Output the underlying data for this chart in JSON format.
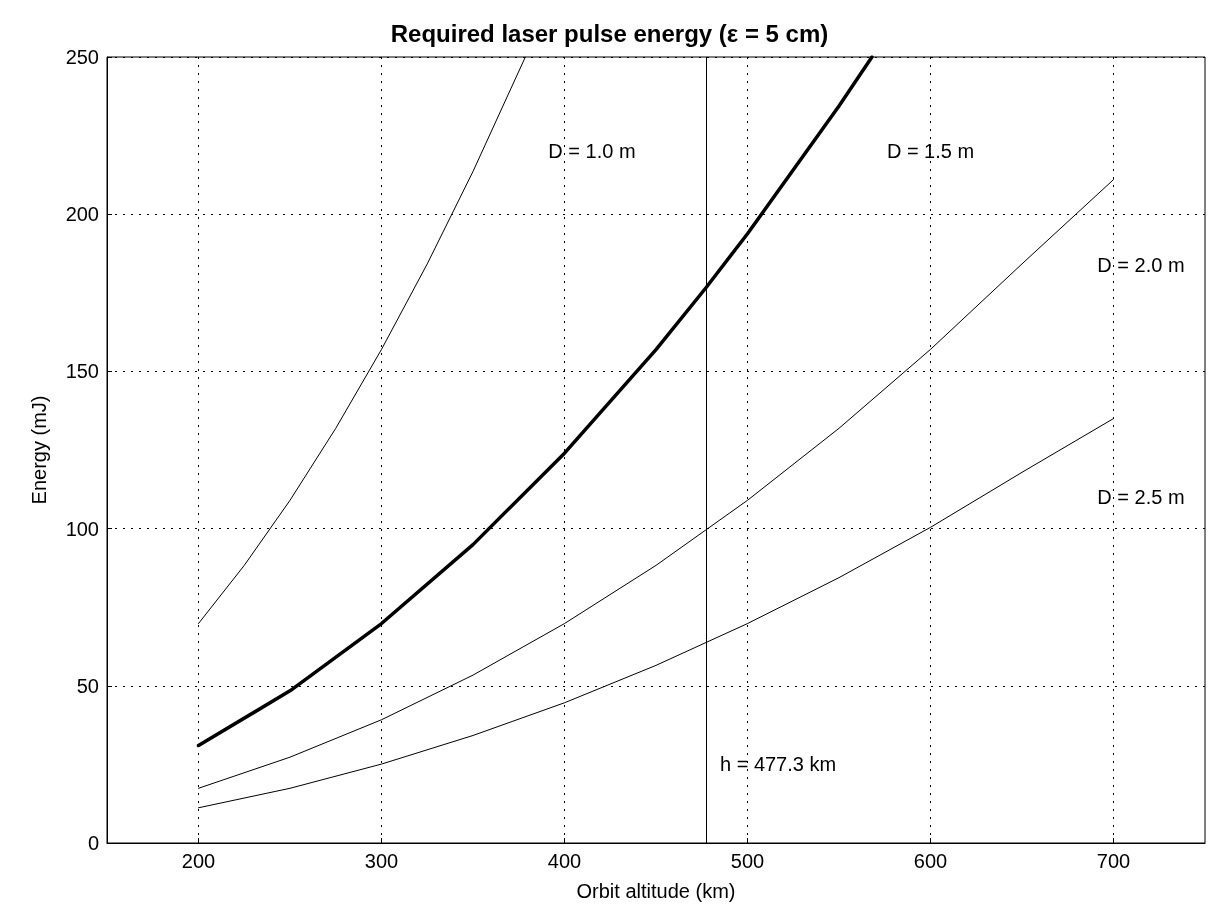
{
  "chart_data": {
    "type": "line",
    "title": "Required laser pulse energy (ε = 5 cm)",
    "xlabel": "Orbit altitude (km)",
    "ylabel": "Energy (mJ)",
    "xlim": [
      150,
      750
    ],
    "xticks": [
      200,
      300,
      400,
      500,
      600,
      700
    ],
    "ylim": [
      0,
      250
    ],
    "yticks": [
      0,
      50,
      100,
      150,
      200,
      250
    ],
    "grid": true,
    "legend": false,
    "marker": "none",
    "line_style": "solid",
    "series": [
      {
        "name": "D = 1.0 m",
        "color": "#000000",
        "x": [
          200,
          225,
          250,
          275,
          300,
          325,
          350,
          378.6
        ],
        "values": [
          69.8,
          88.3,
          109,
          131.9,
          157,
          184.2,
          213.6,
          250
        ]
      },
      {
        "name": "D = 1.5 m",
        "color": "#000000",
        "x": [
          200,
          250,
          300,
          350,
          400,
          450,
          477.3,
          500,
          550,
          568
        ],
        "values": [
          31,
          48.4,
          69.8,
          94.9,
          124,
          156.9,
          176.6,
          193.8,
          234.4,
          250
        ]
      },
      {
        "name": "D = 2.0 m",
        "color": "#000000",
        "x": [
          200,
          250,
          300,
          350,
          400,
          450,
          500,
          550,
          600,
          650,
          700
        ],
        "values": [
          17.4,
          27.3,
          39.2,
          53.4,
          69.8,
          88.3,
          109,
          131.9,
          157,
          184.2,
          211
        ]
      },
      {
        "name": "D = 2.5 m",
        "color": "#000000",
        "x": [
          200,
          250,
          300,
          350,
          400,
          450,
          500,
          550,
          600,
          650,
          700
        ],
        "values": [
          11.2,
          17.4,
          25.1,
          34.2,
          44.6,
          56.5,
          69.8,
          84.4,
          100.4,
          117.9,
          135
        ]
      }
    ],
    "ref_lines": [
      {
        "axis": "x",
        "value": 477.3,
        "label": "h = 477.3 km",
        "color": "#000000",
        "line_style": "solid"
      }
    ]
  }
}
